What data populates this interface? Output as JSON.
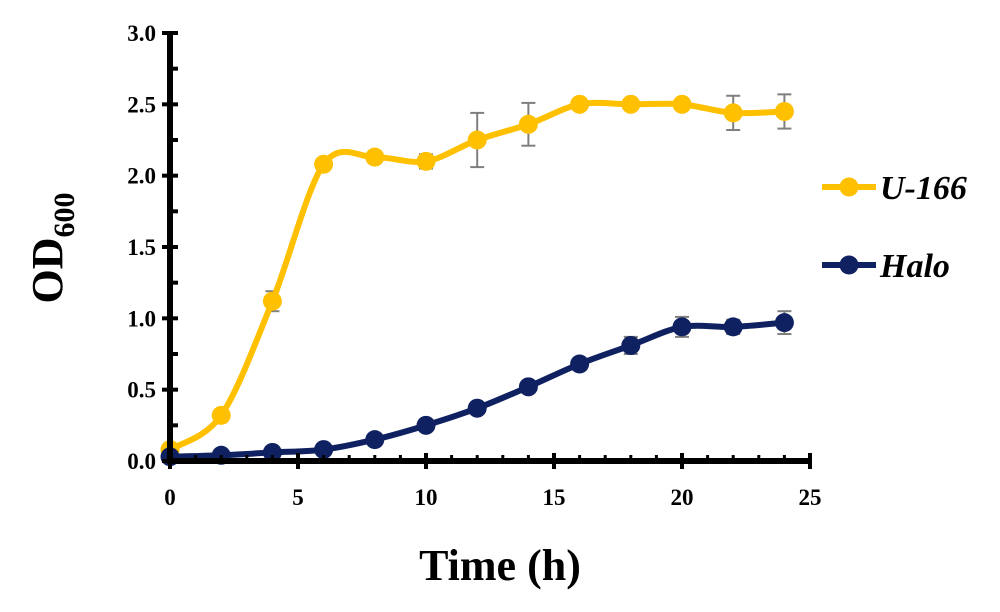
{
  "chart_data": {
    "type": "line",
    "xlabel": "Time (h)",
    "ylabel_main": "OD",
    "ylabel_sub": "600",
    "xlim": [
      0,
      25
    ],
    "ylim": [
      0,
      3.0
    ],
    "x_ticks": [
      "0",
      "5",
      "10",
      "15",
      "20",
      "25"
    ],
    "y_ticks": [
      "0.0",
      "0.5",
      "1.0",
      "1.5",
      "2.0",
      "2.5",
      "3.0"
    ],
    "grid": false,
    "legend_position": "right",
    "x": [
      0,
      2,
      4,
      6,
      8,
      10,
      12,
      14,
      16,
      18,
      20,
      22,
      24
    ],
    "series": [
      {
        "name": "U-166",
        "color": "#FFC000",
        "values": [
          0.08,
          0.32,
          1.12,
          2.08,
          2.13,
          2.1,
          2.25,
          2.36,
          2.5,
          2.5,
          2.5,
          2.44,
          2.45
        ],
        "errors": [
          0.01,
          0.02,
          0.07,
          0.02,
          0.03,
          0.05,
          0.19,
          0.15,
          0.02,
          0.02,
          0.02,
          0.12,
          0.12
        ]
      },
      {
        "name": "Halo",
        "color": "#0F2160",
        "values": [
          0.03,
          0.04,
          0.06,
          0.08,
          0.15,
          0.25,
          0.37,
          0.52,
          0.68,
          0.81,
          0.94,
          0.94,
          0.97
        ],
        "errors": [
          0.01,
          0.01,
          0.01,
          0.01,
          0.01,
          0.02,
          0.02,
          0.02,
          0.02,
          0.06,
          0.07,
          0.05,
          0.08
        ]
      }
    ]
  }
}
